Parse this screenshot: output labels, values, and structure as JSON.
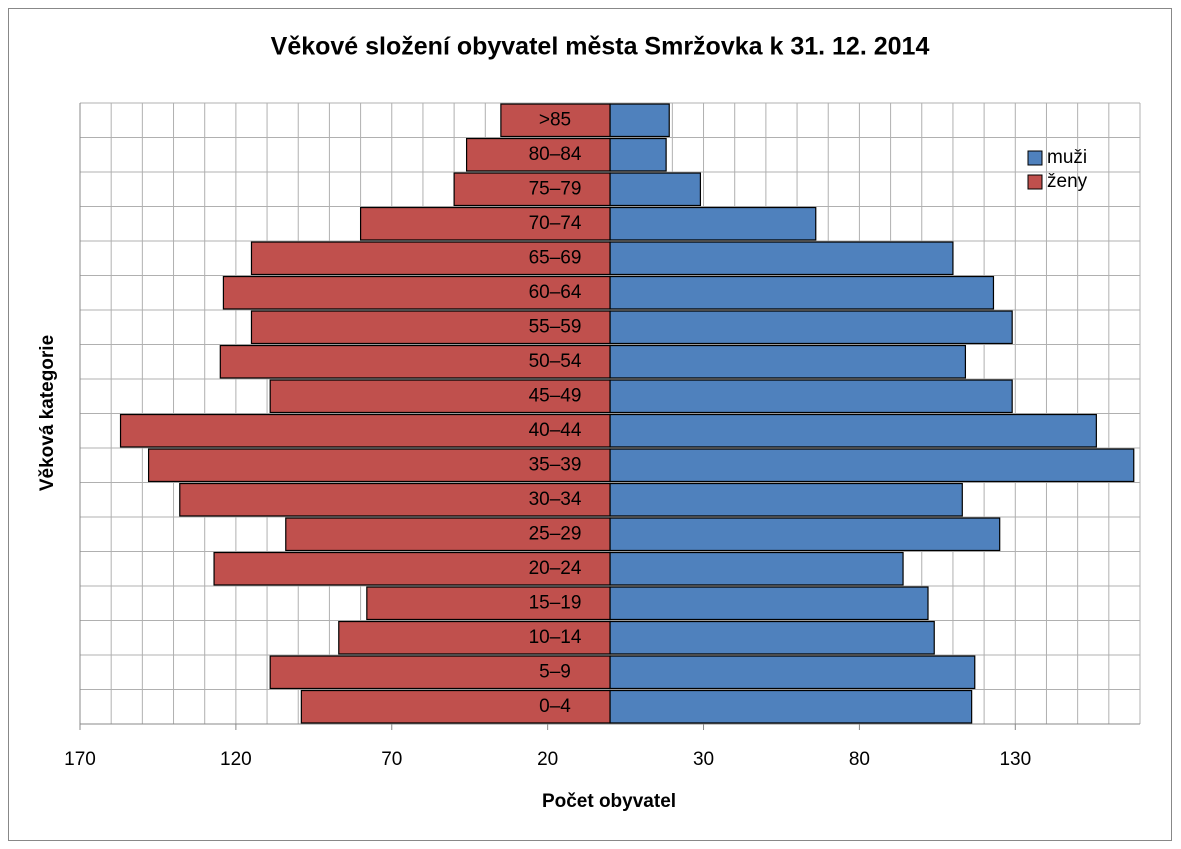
{
  "chart_data": {
    "type": "pyramid",
    "title": "Věkové složení obyvatel města Smržovka k 31. 12. 2014",
    "xlabel": "Počet obyvatel",
    "ylabel": "Věková kategorie",
    "categories": [
      "0–4",
      "5–9",
      "10–14",
      "15–19",
      "20–24",
      "25–29",
      "30–34",
      "35–39",
      "40–44",
      "45–49",
      "50–54",
      "55–59",
      "60–64",
      "65–69",
      "70–74",
      "75–79",
      "80–84",
      ">85"
    ],
    "series": [
      {
        "name": "muži",
        "color": "#4f81bd",
        "values": [
          116,
          117,
          104,
          102,
          94,
          125,
          113,
          168,
          156,
          129,
          114,
          129,
          123,
          110,
          66,
          29,
          18,
          19
        ]
      },
      {
        "name": "ženy",
        "color": "#c0504d",
        "values": [
          -99,
          -109,
          -87,
          -78,
          -127,
          -104,
          -138,
          -148,
          -157,
          -109,
          -125,
          -115,
          -124,
          -115,
          -80,
          -50,
          -46,
          -35
        ]
      }
    ],
    "xlim": [
      -170,
      170
    ],
    "xticks": [
      {
        "value": -170,
        "label": "170"
      },
      {
        "value": -120,
        "label": "120"
      },
      {
        "value": -70,
        "label": "70"
      },
      {
        "value": -20,
        "label": "20"
      },
      30,
      80,
      130
    ],
    "xticks_minor": [
      -170,
      -160,
      -150,
      -140,
      -130,
      -120,
      -110,
      -100,
      -90,
      -80,
      -70,
      -60,
      -50,
      -40,
      -30,
      -20,
      -10,
      0,
      10,
      20,
      30,
      40,
      50,
      60,
      70,
      80,
      90,
      100,
      110,
      120,
      130,
      140,
      150,
      160,
      170
    ],
    "grid": true,
    "legend": "upper right"
  }
}
